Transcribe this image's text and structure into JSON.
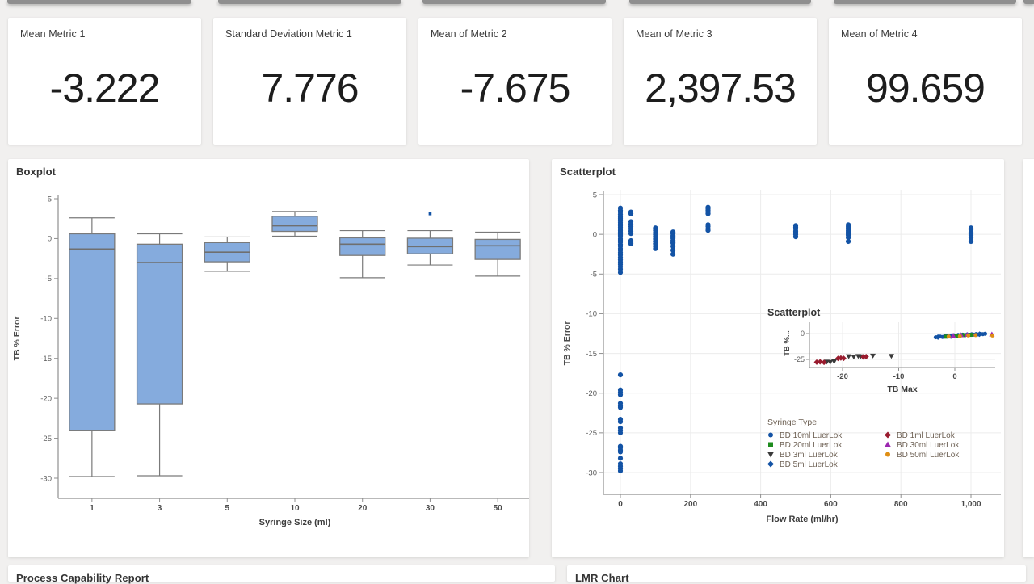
{
  "metrics": [
    {
      "label": "Mean Metric 1",
      "value": "-3.222"
    },
    {
      "label": "Standard Deviation Metric 1",
      "value": "7.776"
    },
    {
      "label": "Mean of Metric 2",
      "value": "-7.675"
    },
    {
      "label": "Mean of Metric 3",
      "value": "2,397.53"
    },
    {
      "label": "Mean of Metric 4",
      "value": "99.659"
    }
  ],
  "panels": {
    "boxplot_title": "Boxplot",
    "scatter_title": "Scatterplot",
    "bottom_left_title": "Process Capability Report",
    "bottom_right_title": "LMR Chart"
  },
  "colors": {
    "box_fill": "#85abdd",
    "box_stroke": "#7a7a7a",
    "point_blue": "#1353a5",
    "axis_gray": "#8f8f8f",
    "grid_gray": "#ececec",
    "tick_text": "#5c5c5c",
    "legend_text": "#6e6154"
  },
  "chart_data": [
    {
      "type": "boxplot",
      "title": "Boxplot",
      "xlabel": "Syringe Size (ml)",
      "ylabel": "TB % Error",
      "categories": [
        "1",
        "3",
        "5",
        "10",
        "20",
        "30",
        "50"
      ],
      "ylim": [
        -32,
        6
      ],
      "yticks": [
        5,
        0,
        -5,
        -10,
        -15,
        -20,
        -25,
        -30
      ],
      "grid": false,
      "boxes": [
        {
          "whislo": -29.8,
          "q1": -24.0,
          "med": -1.3,
          "q3": 0.6,
          "whishi": 2.6,
          "outliers": []
        },
        {
          "whislo": -29.7,
          "q1": -20.7,
          "med": -3.0,
          "q3": -0.7,
          "whishi": 0.6,
          "outliers": []
        },
        {
          "whislo": -4.1,
          "q1": -2.9,
          "med": -1.7,
          "q3": -0.5,
          "whishi": 0.2,
          "outliers": []
        },
        {
          "whislo": 0.3,
          "q1": 0.9,
          "med": 1.6,
          "q3": 2.8,
          "whishi": 3.4,
          "outliers": []
        },
        {
          "whislo": -4.9,
          "q1": -2.1,
          "med": -0.7,
          "q3": 0.1,
          "whishi": 1.0,
          "outliers": []
        },
        {
          "whislo": -3.3,
          "q1": -1.9,
          "med": -1.0,
          "q3": 0.05,
          "whishi": 1.0,
          "outliers": [
            3.1
          ]
        },
        {
          "whislo": -4.7,
          "q1": -2.6,
          "med": -0.9,
          "q3": -0.1,
          "whishi": 0.8,
          "outliers": []
        }
      ]
    },
    {
      "type": "scatter",
      "title": "Scatterplot",
      "xlabel": "Flow Rate (ml/hr)",
      "ylabel": "TB % Error",
      "xticks": [
        0,
        200,
        400,
        600,
        800,
        1000
      ],
      "xtick_labels": [
        "0",
        "200",
        "400",
        "600",
        "800",
        "1,000"
      ],
      "yticks": [
        5,
        0,
        -5,
        -10,
        -15,
        -20,
        -25,
        -30
      ],
      "xlim": [
        -50,
        1060
      ],
      "ylim": [
        -32,
        6
      ],
      "grid": true,
      "point_color": "#1353a5",
      "clusters": [
        {
          "x": 0,
          "ys": [
            3.3,
            3.0,
            2.8,
            2.5,
            2.2,
            2.0,
            1.8,
            1.5,
            1.3,
            1.1,
            0.9,
            0.7,
            0.5,
            0.3,
            0.1,
            -0.1,
            -0.3,
            -0.6,
            -0.8,
            -1.0,
            -1.3,
            -1.5,
            -1.8,
            -2.0,
            -2.3,
            -2.6,
            -2.9,
            -3.2,
            -3.5,
            -3.8,
            -4.1,
            -4.4,
            -4.8
          ]
        },
        {
          "x": 0,
          "ys": [
            -17.7,
            -19.6,
            -19.9,
            -20.2,
            -21.3,
            -21.6,
            -21.8,
            -23.3,
            -23.6,
            -24.4,
            -24.7,
            -25.0,
            -26.7,
            -26.9,
            -27.2,
            -27.4,
            -28.2,
            -28.9,
            -29.2,
            -29.5,
            -29.8
          ]
        },
        {
          "x": 30,
          "ys": [
            2.8,
            2.6,
            1.6,
            1.3,
            1.0,
            0.7,
            0.4,
            0.1,
            -0.8,
            -1.0,
            -1.2
          ]
        },
        {
          "x": 100,
          "ys": [
            0.8,
            0.5,
            0.2,
            0.0,
            -0.3,
            -0.6,
            -0.9,
            -1.2,
            -1.5,
            -1.8
          ]
        },
        {
          "x": 150,
          "ys": [
            0.3,
            0.1,
            -0.2,
            -0.5,
            -0.8,
            -1.1,
            -1.5,
            -2.0,
            -2.5
          ]
        },
        {
          "x": 250,
          "ys": [
            3.4,
            3.2,
            3.0,
            2.8,
            2.6,
            1.2,
            1.0,
            0.7,
            0.5
          ]
        },
        {
          "x": 500,
          "ys": [
            1.1,
            0.9,
            0.7,
            0.4,
            0.2,
            0.0,
            -0.3
          ]
        },
        {
          "x": 650,
          "ys": [
            1.2,
            1.0,
            0.8,
            0.5,
            0.3,
            0.1,
            -0.1,
            -0.4,
            -0.9
          ]
        },
        {
          "x": 1000,
          "ys": [
            0.8,
            0.6,
            0.3,
            0.1,
            -0.1,
            -0.4,
            -0.9
          ]
        }
      ]
    },
    {
      "type": "scatter",
      "title": "Scatterplot",
      "xlabel": "TB Max",
      "ylabel": "TB %...",
      "xticks": [
        -20,
        -10,
        0
      ],
      "yticks": [
        0,
        -25
      ],
      "grid": true,
      "legend": {
        "title": "Syringe Type",
        "columns": [
          [
            "BD 10ml LuerLok",
            "BD 20ml LuerLok",
            "BD 3ml LuerLok",
            "BD 5ml LuerLok"
          ],
          [
            "BD 1ml LuerLok",
            "BD 30ml LuerLok",
            "BD 50ml LuerLok"
          ]
        ]
      },
      "series": [
        {
          "name": "BD 10ml LuerLok",
          "marker": "circle",
          "color": "#1353a5",
          "points": [
            [
              -3.4,
              -3.6
            ],
            [
              -3.0,
              -3.2
            ],
            [
              -2.6,
              -2.9
            ],
            [
              -2.2,
              -3.3
            ],
            [
              -1.8,
              -2.6
            ],
            [
              -1.4,
              -2.3
            ],
            [
              -1.0,
              -2.8
            ],
            [
              -0.6,
              -2.0
            ],
            [
              -0.2,
              -1.7
            ],
            [
              0.2,
              -2.2
            ],
            [
              0.6,
              -1.4
            ],
            [
              1.0,
              -1.9
            ],
            [
              1.4,
              -1.1
            ],
            [
              1.8,
              -1.6
            ],
            [
              2.2,
              -0.9
            ],
            [
              2.6,
              -1.3
            ],
            [
              3.0,
              -0.7
            ],
            [
              3.4,
              -1.1
            ],
            [
              3.8,
              -0.5
            ],
            [
              4.2,
              -0.9
            ],
            [
              4.6,
              -0.3
            ],
            [
              5.0,
              -0.6
            ],
            [
              5.4,
              -0.2
            ]
          ]
        },
        {
          "name": "BD 20ml LuerLok",
          "marker": "square",
          "color": "#1e8c1e",
          "points": [
            [
              -1.6,
              -3.0
            ],
            [
              0.3,
              -2.4
            ],
            [
              1.6,
              -1.5
            ],
            [
              2.8,
              -1.2
            ]
          ]
        },
        {
          "name": "BD 3ml LuerLok",
          "marker": "triangle-down",
          "color": "#3a3a3a",
          "points": [
            [
              -22.8,
              -27.2
            ],
            [
              -22.2,
              -27.5
            ],
            [
              -21.5,
              -27.0
            ],
            [
              -18.9,
              -22.0
            ],
            [
              -18.0,
              -22.4
            ],
            [
              -17.2,
              -21.8
            ],
            [
              -16.8,
              -22.1
            ],
            [
              -14.6,
              -21.4
            ],
            [
              -11.3,
              -21.7
            ]
          ]
        },
        {
          "name": "BD 5ml LuerLok",
          "marker": "diamond",
          "color": "#1353a5",
          "points": [
            [
              -3.0,
              -3.4
            ],
            [
              -0.7,
              -2.5
            ],
            [
              4.4,
              -0.6
            ]
          ]
        },
        {
          "name": "BD 1ml LuerLok",
          "marker": "diamond",
          "color": "#991b2e",
          "points": [
            [
              -24.6,
              -27.6
            ],
            [
              -24.0,
              -27.3
            ],
            [
              -23.3,
              -27.8
            ],
            [
              -20.8,
              -24.0
            ],
            [
              -20.3,
              -23.6
            ],
            [
              -19.8,
              -23.9
            ],
            [
              -16.3,
              -22.6
            ],
            [
              -15.8,
              -22.3
            ]
          ]
        },
        {
          "name": "BD 30ml LuerLok",
          "marker": "triangle-up",
          "color": "#9c27b0",
          "points": [
            [
              -0.3,
              -2.1
            ],
            [
              1.1,
              -1.5
            ],
            [
              2.2,
              -1.2
            ],
            [
              6.6,
              -0.8
            ]
          ]
        },
        {
          "name": "BD 50ml LuerLok",
          "marker": "circle",
          "color": "#df8e14",
          "points": [
            [
              -1.1,
              -2.8
            ],
            [
              0.9,
              -2.6
            ],
            [
              2.4,
              -1.8
            ],
            [
              3.7,
              -1.5
            ],
            [
              6.7,
              -1.9
            ]
          ]
        }
      ]
    }
  ]
}
